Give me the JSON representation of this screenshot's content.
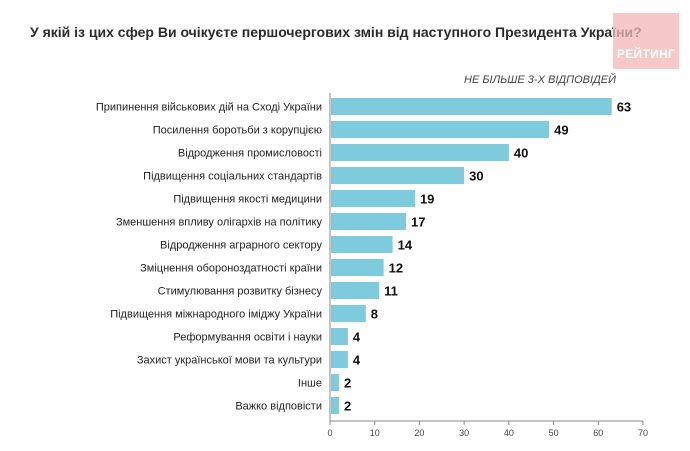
{
  "header": {
    "title": "У якій із цих сфер Ви очікуєте першочергових змін від наступного Президента України?",
    "logo_text": "РЕЙТИНГ"
  },
  "chart_data": {
    "type": "bar",
    "orientation": "horizontal",
    "title": "У якій із цих сфер Ви очікуєте першочергових змін від наступного Президента України?",
    "subtitle": "НЕ БІЛЬШЕ 3-Х ВІДПОВІДЕЙ",
    "xlabel": "",
    "ylabel": "",
    "categories": [
      "Припинення військових дій на Сході України",
      "Посилення боротьби з корупцією",
      "Відродження промисловості",
      "Підвищення соціальних стандартів",
      "Підвищення якості медицини",
      "Зменшення впливу олігархів на політику",
      "Відродження аграрного сектору",
      "Зміцнення обороноздатності країни",
      "Стимулювання розвитку бізнесу",
      "Підвищення міжнародного іміджу України",
      "Реформування освіти і науки",
      "Захист української мови та культури",
      "Інше",
      "Важко відповісти"
    ],
    "values": [
      63,
      49,
      40,
      30,
      19,
      17,
      14,
      12,
      11,
      8,
      4,
      4,
      2,
      2
    ],
    "xlim": [
      0,
      70
    ],
    "xticks": [
      "0",
      "10",
      "20",
      "30",
      "40",
      "50",
      "60",
      "70"
    ],
    "grid": false,
    "legend": "none",
    "bar_color": "#7dcbdc",
    "axis_color": "#888888"
  }
}
